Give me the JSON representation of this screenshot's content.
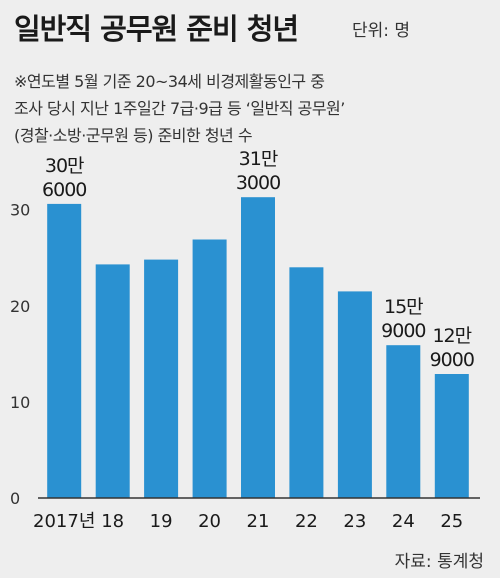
{
  "title": "일반직 공무원 준비 청년",
  "unit": "단위: 명",
  "note": {
    "line1": "※연도별 5월 기준 20~34세 비경제활동인구 중",
    "line2": "조사 당시 지난 1주일간 7급·9급 등 ‘일반직 공무원’",
    "line3": "(경찰·소방·군무원 등) 준비한 청년 수"
  },
  "source": "자료: 통계청",
  "colors": {
    "bar": "#2a91d1",
    "background": "#eeeeee",
    "text": "#1a1a1a",
    "axis": "#333333"
  },
  "chart_data": {
    "type": "bar",
    "categories": [
      "2017년",
      "18",
      "19",
      "20",
      "21",
      "22",
      "23",
      "24",
      "25"
    ],
    "values": [
      306000,
      243000,
      248000,
      269000,
      313000,
      240000,
      215000,
      159000,
      129000
    ],
    "unit_note": "y-axis ticks in 만 (10,000) persons",
    "yticks": [
      "0",
      "10",
      "20",
      "30"
    ],
    "ytick_values": [
      0,
      100000,
      200000,
      300000
    ],
    "ylim": [
      0,
      360000
    ],
    "annotations": [
      {
        "index": 0,
        "line1": "30만",
        "line2": "6000"
      },
      {
        "index": 4,
        "line1": "31만",
        "line2": "3000"
      },
      {
        "index": 7,
        "line1": "15만",
        "line2": "9000"
      },
      {
        "index": 8,
        "line1": "12만",
        "line2": "9000"
      }
    ]
  }
}
